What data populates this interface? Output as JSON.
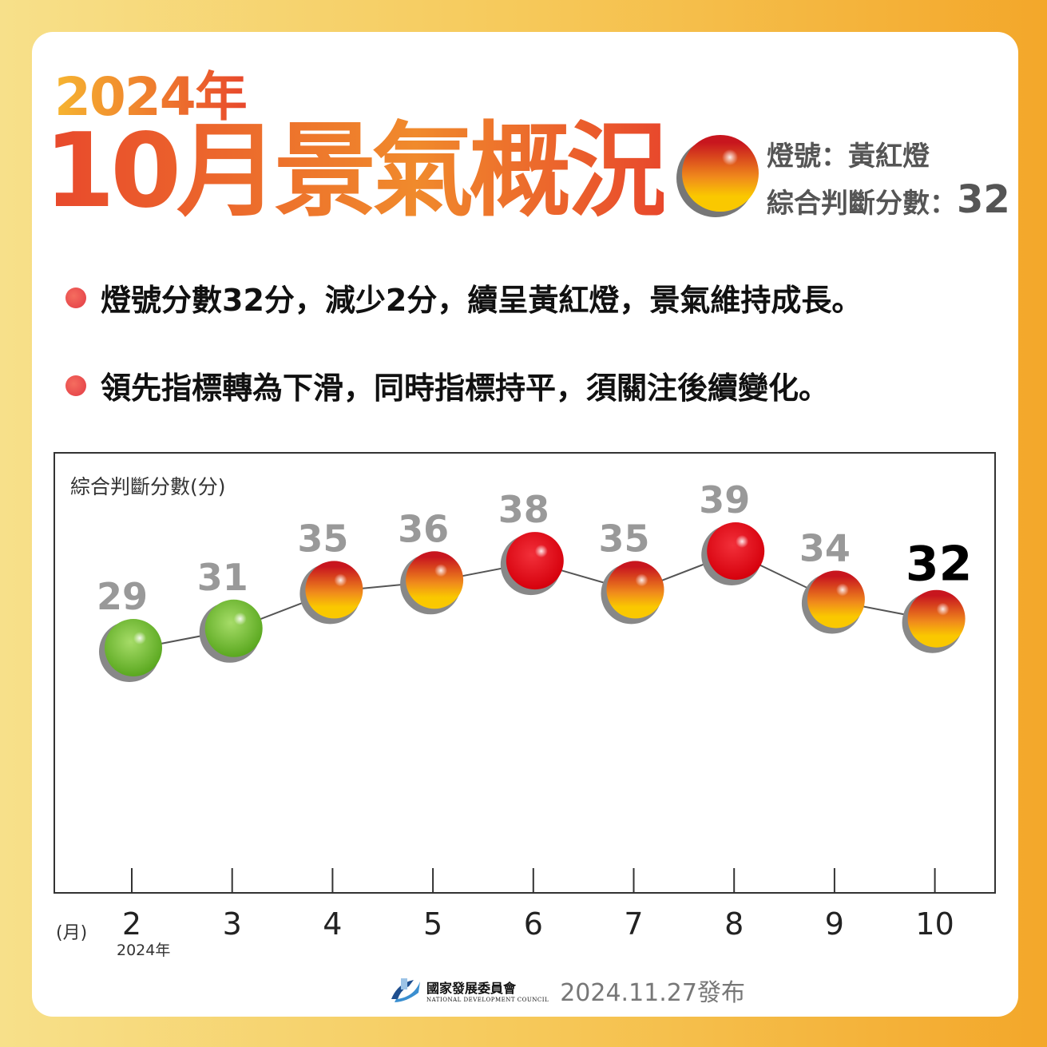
{
  "header": {
    "year": "2024年",
    "title": "10月景氣概況",
    "signal_label": "燈號：黃紅燈",
    "score_label": "綜合判斷分數：",
    "score": "32",
    "signal_color": "yellow-red"
  },
  "bullets": [
    "燈號分數32分，減少2分，續呈黃紅燈，景氣維持成長。",
    "領先指標轉為下滑，同時指標持平，須關注後續變化。"
  ],
  "chart_data": {
    "type": "line",
    "ylabel": "綜合判斷分數(分)",
    "xlabel": "(月)",
    "x_sublabel": "2024年",
    "categories": [
      "2",
      "3",
      "4",
      "5",
      "6",
      "7",
      "8",
      "9",
      "10"
    ],
    "values": [
      29,
      31,
      35,
      36,
      38,
      35,
      39,
      34,
      32
    ],
    "signals": [
      "green",
      "green",
      "yellow-red",
      "yellow-red",
      "red",
      "yellow-red",
      "red",
      "yellow-red",
      "yellow-red"
    ],
    "highlight_last": true,
    "colors": {
      "green": "#6cbf2f",
      "red": "#e0101a",
      "yellow-red": "#f0a020",
      "label": "#999999",
      "line": "#555555"
    }
  },
  "footer": {
    "org_zh": "國家發展委員會",
    "org_en": "NATIONAL DEVELOPMENT COUNCIL",
    "published": "2024.11.27發布",
    "logo_icon": "ndc-logo-icon"
  }
}
